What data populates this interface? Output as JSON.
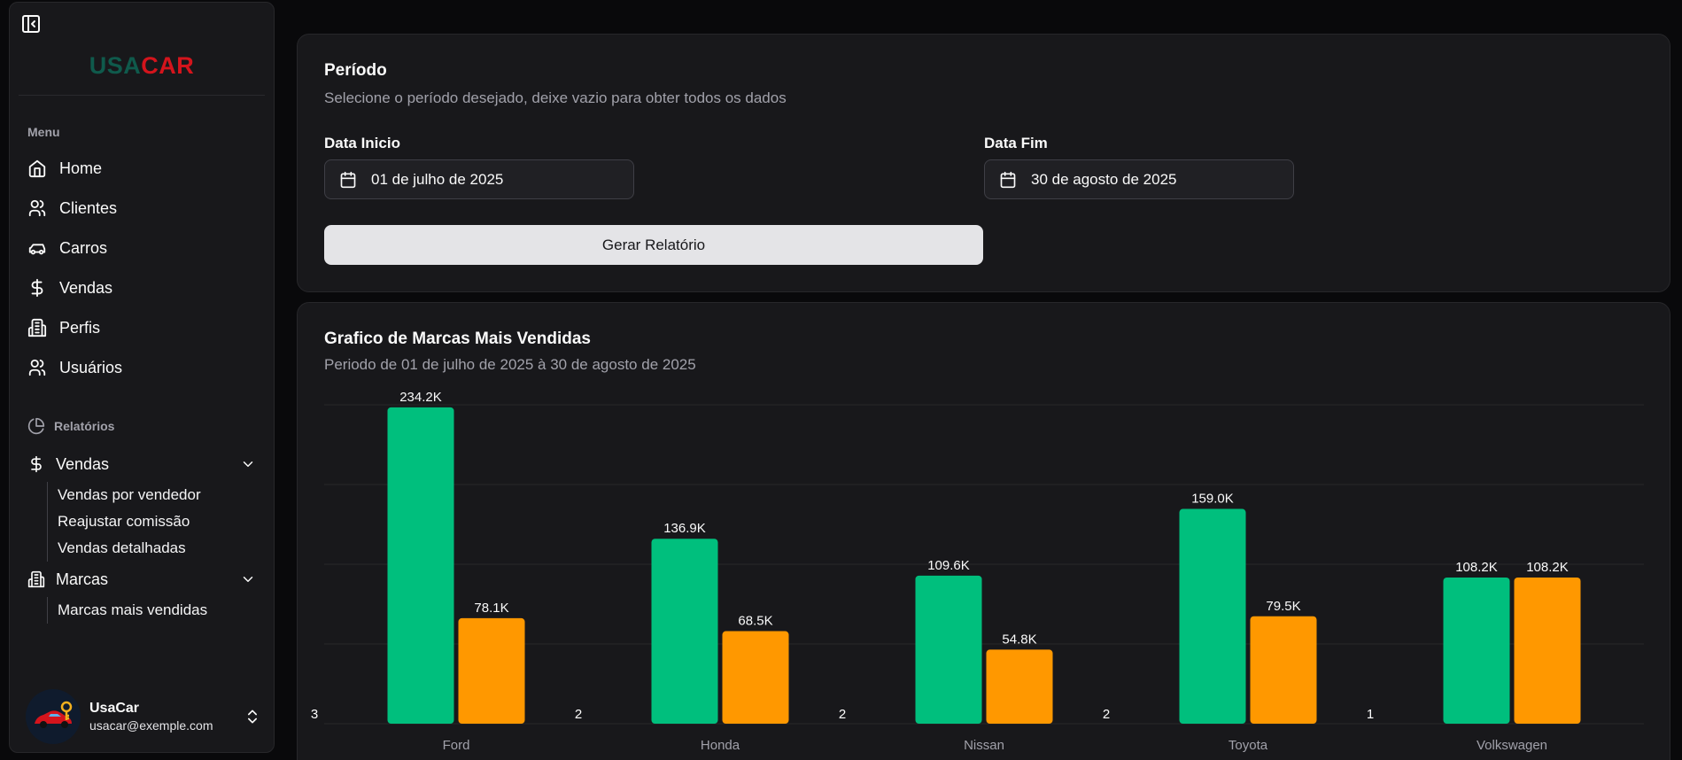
{
  "sidebar": {
    "logo": {
      "part1": "USA",
      "part2": "CAR"
    },
    "menu_label": "Menu",
    "items": [
      {
        "label": "Home",
        "icon": "home-icon"
      },
      {
        "label": "Clientes",
        "icon": "users-icon"
      },
      {
        "label": "Carros",
        "icon": "car-icon"
      },
      {
        "label": "Vendas",
        "icon": "dollar-icon"
      },
      {
        "label": "Perfis",
        "icon": "building-icon"
      },
      {
        "label": "Usuários",
        "icon": "users-icon"
      }
    ],
    "reports_label": "Relatórios",
    "reports": [
      {
        "label": "Vendas",
        "subitems": [
          "Vendas por vendedor",
          "Reajustar comissão",
          "Vendas detalhadas"
        ]
      },
      {
        "label": "Marcas",
        "subitems": [
          "Marcas mais vendidas"
        ]
      }
    ],
    "user": {
      "name": "UsaCar",
      "email": "usacar@exemple.com"
    }
  },
  "period": {
    "title": "Período",
    "description": "Selecione o período desejado, deixe vazio para obter todos os dados",
    "start_label": "Data Inicio",
    "start_value": "01 de julho de 2025",
    "end_label": "Data Fim",
    "end_value": "30 de agosto de 2025",
    "button_label": "Gerar Relatório"
  },
  "chart": {
    "title": "Grafico de Marcas Mais Vendidas",
    "subtitle": "Periodo de 01 de julho de 2025 à 30 de agosto de 2025"
  },
  "chart_data": {
    "type": "bar",
    "categories": [
      "Ford",
      "Honda",
      "Nissan",
      "Toyota",
      "Volkswagen"
    ],
    "series": [
      {
        "values": [
          3,
          2,
          2,
          2,
          1
        ],
        "labels": [
          "3",
          "2",
          "2",
          "2",
          "1"
        ],
        "color": "#ffffff"
      },
      {
        "values": [
          234200,
          136900,
          109600,
          159000,
          108200
        ],
        "labels": [
          "234.2K",
          "136.9K",
          "109.6K",
          "159.0K",
          "108.2K"
        ],
        "color": "#00bf7d"
      },
      {
        "values": [
          78100,
          68500,
          54800,
          79500,
          108200
        ],
        "labels": [
          "78.1K",
          "68.5K",
          "54.8K",
          "79.5K",
          "108.2K"
        ],
        "color": "#ff9800"
      }
    ],
    "ylim": [
      0,
      240000
    ],
    "grid": true,
    "legend": "none"
  }
}
